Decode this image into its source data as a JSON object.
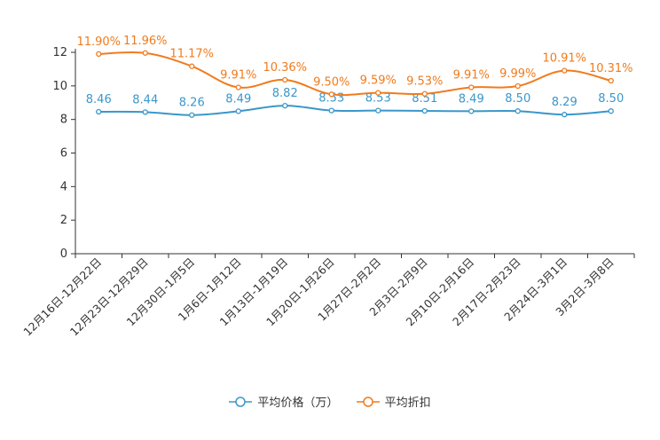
{
  "chart_data": {
    "type": "line",
    "categories": [
      "12月16日-12月22日",
      "12月23日-12月29日",
      "12月30日-1月5日",
      "1月6日-1月12日",
      "1月13日-1月19日",
      "1月20日-1月26日",
      "1月27日-2月2日",
      "2月3日-2月9日",
      "2月10日-2月16日",
      "2月17日-2月23日",
      "2月24日-3月1日",
      "3月2日-3月8日"
    ],
    "series": [
      {
        "name": "平均价格（万）",
        "color": "#3a97c9",
        "values": [
          8.46,
          8.44,
          8.26,
          8.49,
          8.82,
          8.53,
          8.53,
          8.51,
          8.49,
          8.5,
          8.29,
          8.5
        ],
        "labels": [
          "8.46",
          "8.44",
          "8.26",
          "8.49",
          "8.82",
          "8.53",
          "8.53",
          "8.51",
          "8.49",
          "8.50",
          "8.29",
          "8.50"
        ]
      },
      {
        "name": "平均折扣",
        "color": "#f07b1d",
        "values": [
          11.9,
          11.96,
          11.17,
          9.91,
          10.36,
          9.5,
          9.59,
          9.53,
          9.91,
          9.99,
          10.91,
          10.31
        ],
        "labels": [
          "11.90%",
          "11.96%",
          "11.17%",
          "9.91%",
          "10.36%",
          "9.50%",
          "9.59%",
          "9.53%",
          "9.91%",
          "9.99%",
          "10.91%",
          "10.31%"
        ]
      }
    ],
    "yticks": [
      "0",
      "2",
      "4",
      "6",
      "8",
      "10",
      "12"
    ],
    "ylim": [
      0,
      12
    ],
    "title": "",
    "xlabel": "",
    "ylabel": ""
  }
}
